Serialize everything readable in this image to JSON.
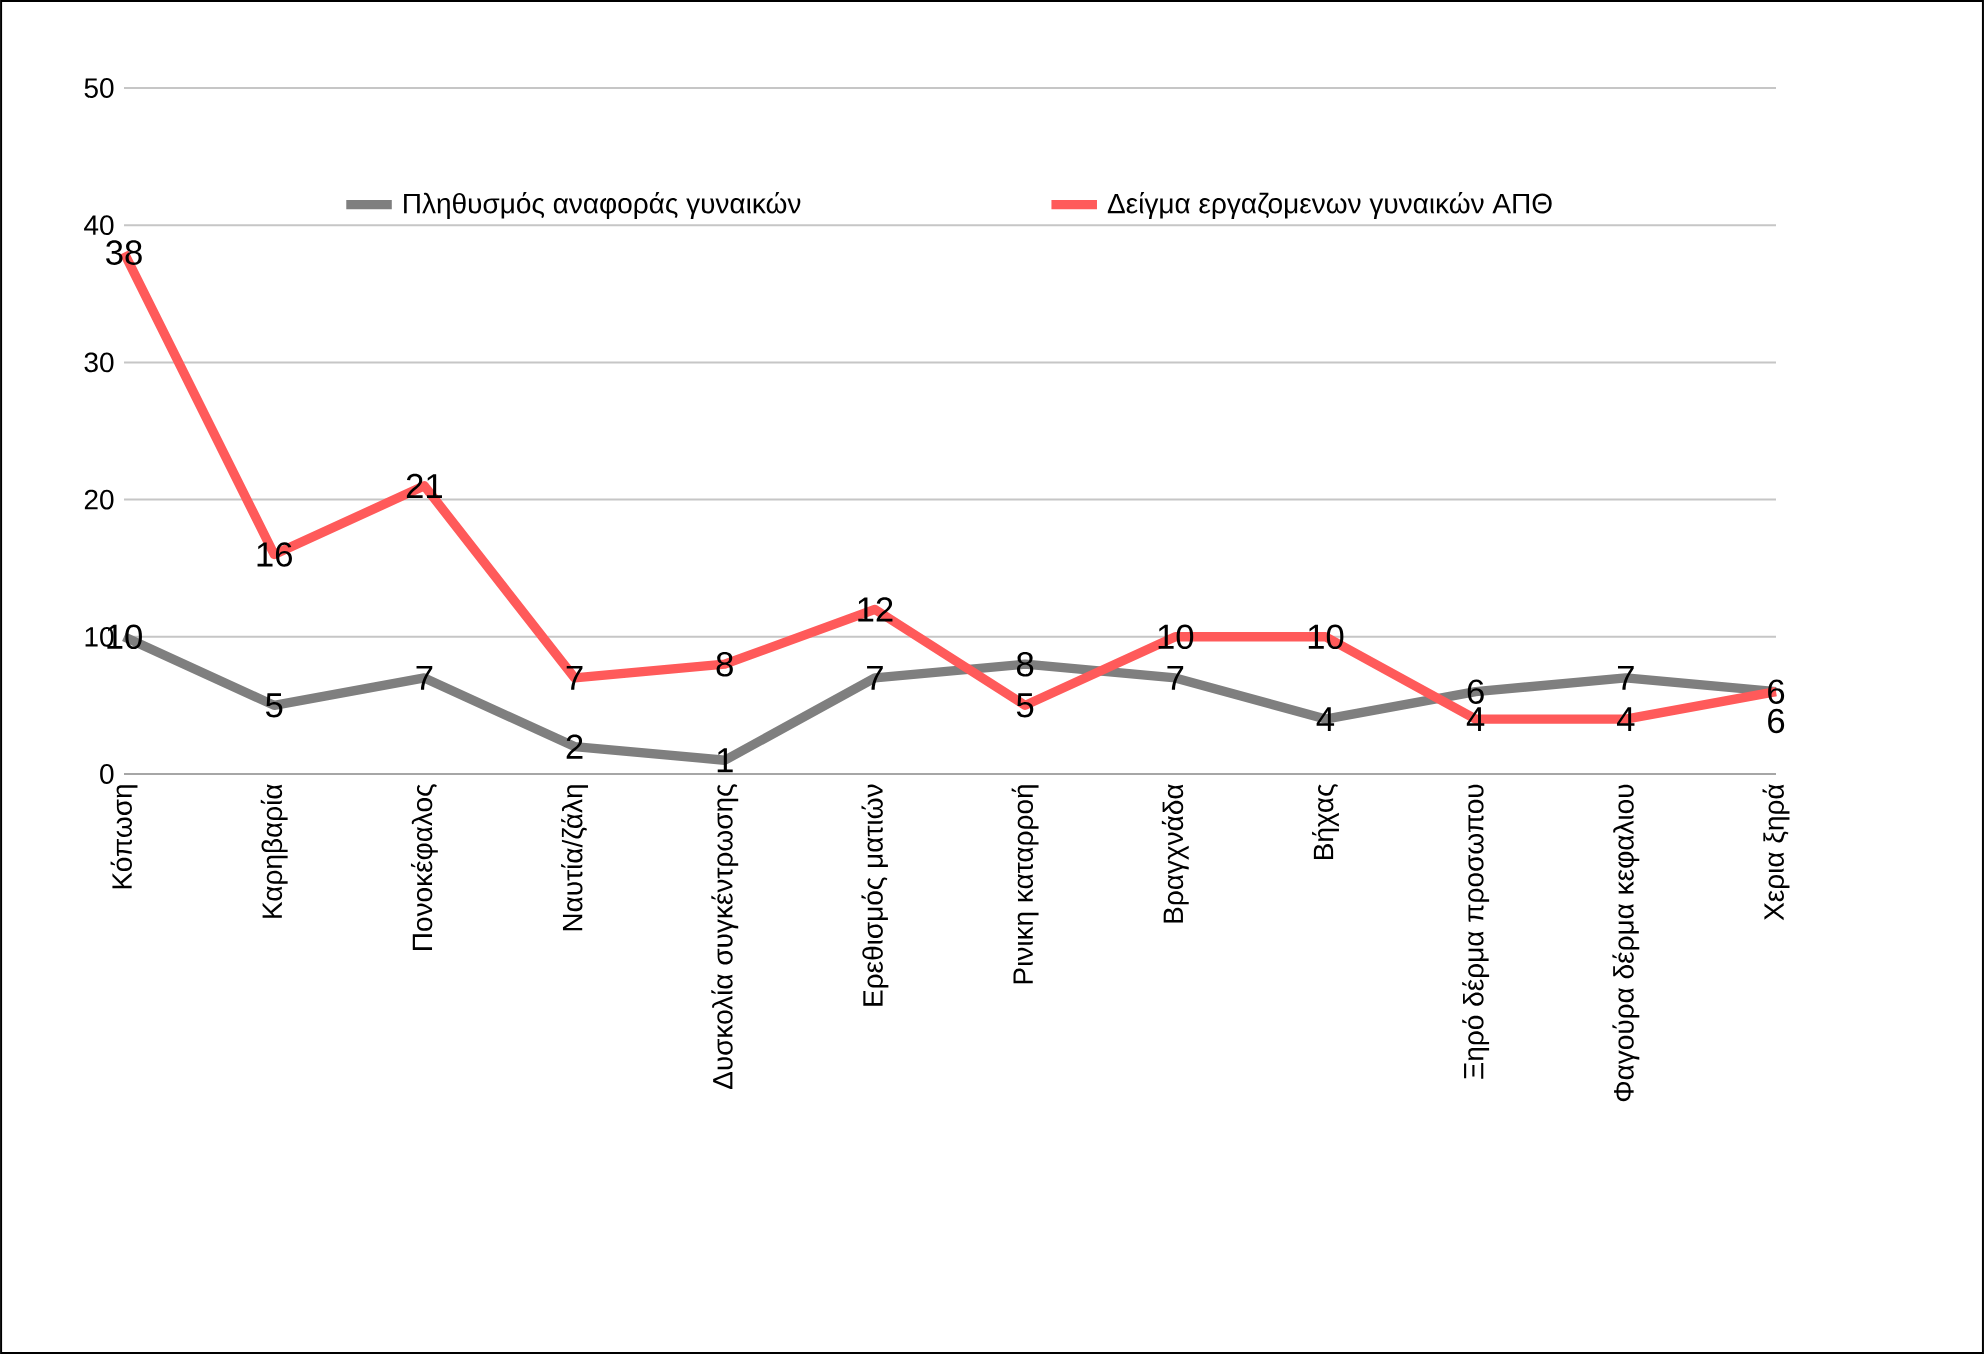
{
  "chart_data": {
    "type": "line",
    "categories": [
      "Κόπωση",
      "Καρηβαρία",
      "Πονοκέφαλος",
      "Ναυτία/ζάλη",
      "Δυσκολία συγκέντρωσης",
      "Ερεθισμός ματιών",
      "Ρινικη καταρροή",
      "Βραγχνάδα",
      "Βήχας",
      "Ξηρό δέρμα προσωπου",
      "Φαγούρα δέρμα κεφαλιου",
      "Χερια ξηρά"
    ],
    "series": [
      {
        "name": "Πληθυσμός αναφοράς γυναικών",
        "color": "#7f7f7f",
        "values": [
          10,
          5,
          7,
          2,
          1,
          7,
          8,
          7,
          4,
          6,
          7,
          6
        ]
      },
      {
        "name": "Δείγμα εργαζομενων γυναικών ΑΠΘ",
        "color": "#ff5a5a",
        "values": [
          38,
          16,
          21,
          7,
          8,
          12,
          5,
          10,
          10,
          4,
          4,
          6
        ]
      }
    ],
    "ylim": [
      0,
      50
    ],
    "yticks": [
      0,
      10,
      20,
      30,
      40,
      50
    ],
    "grid": "y",
    "legend": "top",
    "data_labels": true,
    "marker": "none",
    "line_style": "solid"
  }
}
